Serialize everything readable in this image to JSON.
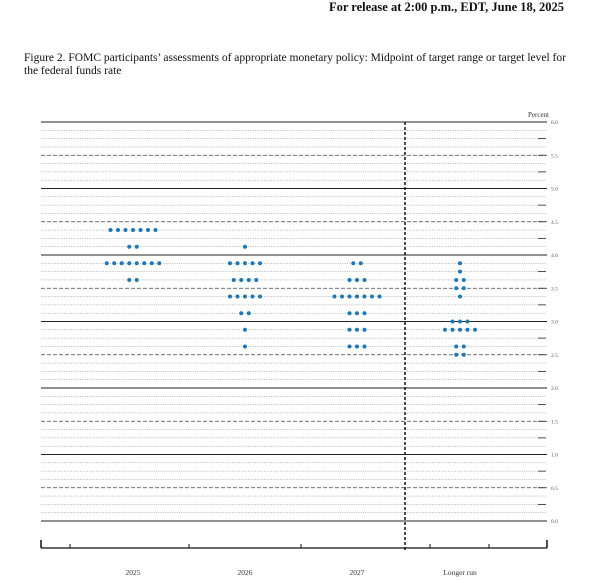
{
  "header": {
    "release_line": "For release at 2:00 p.m., EDT, June 18, 2025"
  },
  "figure": {
    "caption": "Figure 2.  FOMC participants’ assessments of appropriate monetary policy:  Midpoint of target range or target level for the federal funds rate"
  },
  "chart_data": {
    "type": "scatter",
    "subtype": "dot-plot",
    "title": "",
    "ylabel": "Percent",
    "xlabel": "",
    "ylim": [
      0,
      6
    ],
    "ytick_labels": [
      "0.0",
      "0.5",
      "1.0",
      "1.5",
      "2.0",
      "2.5",
      "3.0",
      "3.5",
      "4.0",
      "4.5",
      "5.0",
      "5.5",
      "6.0"
    ],
    "categories": [
      "2025",
      "2026",
      "2027",
      "Longer run"
    ],
    "grid": true,
    "dot_color": "#1f77b4",
    "distribution": [
      {
        "category": "2025",
        "dots": [
          {
            "rate": 4.375,
            "count": 7
          },
          {
            "rate": 4.125,
            "count": 2
          },
          {
            "rate": 3.875,
            "count": 8
          },
          {
            "rate": 3.625,
            "count": 2
          }
        ]
      },
      {
        "category": "2026",
        "dots": [
          {
            "rate": 4.125,
            "count": 1
          },
          {
            "rate": 3.875,
            "count": 5
          },
          {
            "rate": 3.625,
            "count": 4
          },
          {
            "rate": 3.375,
            "count": 5
          },
          {
            "rate": 3.125,
            "count": 2
          },
          {
            "rate": 2.875,
            "count": 1
          },
          {
            "rate": 2.625,
            "count": 1
          }
        ]
      },
      {
        "category": "2027",
        "dots": [
          {
            "rate": 3.875,
            "count": 2
          },
          {
            "rate": 3.625,
            "count": 3
          },
          {
            "rate": 3.375,
            "count": 7
          },
          {
            "rate": 3.125,
            "count": 3
          },
          {
            "rate": 2.875,
            "count": 3
          },
          {
            "rate": 2.625,
            "count": 3
          }
        ]
      },
      {
        "category": "Longer run",
        "dots": [
          {
            "rate": 3.875,
            "count": 1
          },
          {
            "rate": 3.75,
            "count": 1
          },
          {
            "rate": 3.625,
            "count": 2
          },
          {
            "rate": 3.5,
            "count": 2
          },
          {
            "rate": 3.375,
            "count": 1
          },
          {
            "rate": 3.0,
            "count": 3
          },
          {
            "rate": 2.875,
            "count": 5
          },
          {
            "rate": 2.625,
            "count": 2
          },
          {
            "rate": 2.5,
            "count": 2
          }
        ]
      }
    ]
  }
}
